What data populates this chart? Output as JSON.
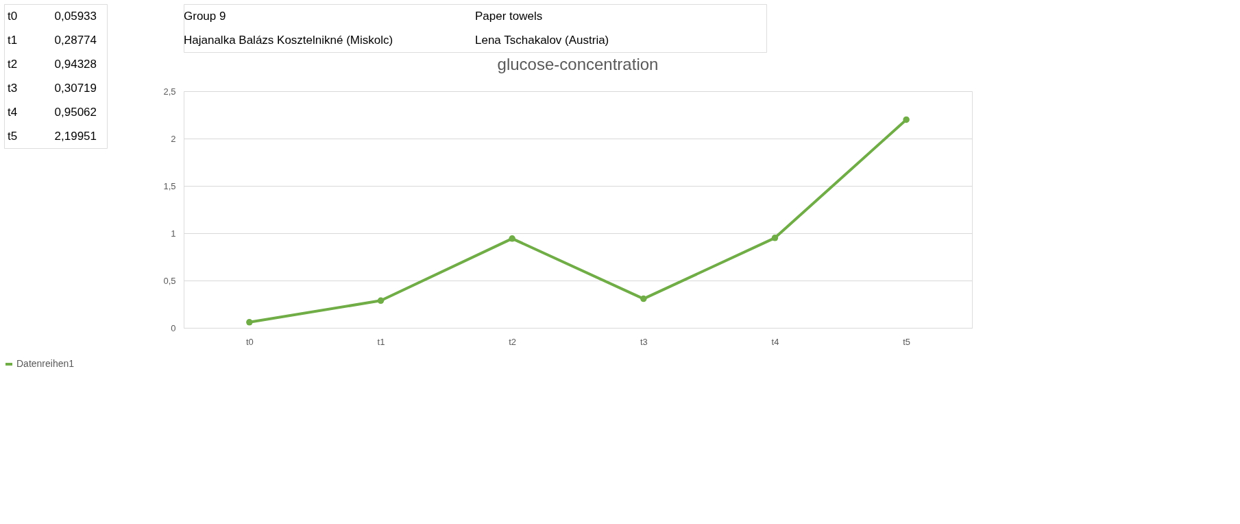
{
  "chart_data": {
    "type": "line",
    "title": "glucose-concentration",
    "categories": [
      "t0",
      "t1",
      "t2",
      "t3",
      "t4",
      "t5"
    ],
    "series": [
      {
        "name": "Datenreihen1",
        "color": "#70ad47",
        "values": [
          0.05933,
          0.28774,
          0.94328,
          0.30719,
          0.95062,
          2.19951
        ]
      }
    ],
    "value_labels": [
      "0,05933",
      "0,28774",
      "0,94328",
      "0,30719",
      "0,95062",
      "2,19951"
    ],
    "ylim": [
      0,
      2.5
    ],
    "yticks": [
      0,
      {
        "value": 0.5,
        "label": "0,5"
      },
      1,
      {
        "value": 1.5,
        "label": "1,5"
      },
      2,
      {
        "value": 2.5,
        "label": "2,5"
      }
    ],
    "grid": "y",
    "legend": "bottom",
    "marker": "circle",
    "line_style": "solid",
    "annotations": [
      "Group 9",
      "Paper towels",
      "Hajanalka Balázs Kosztelnikné (Miskolc)",
      "Lena Tschakalov (Austria)"
    ]
  }
}
